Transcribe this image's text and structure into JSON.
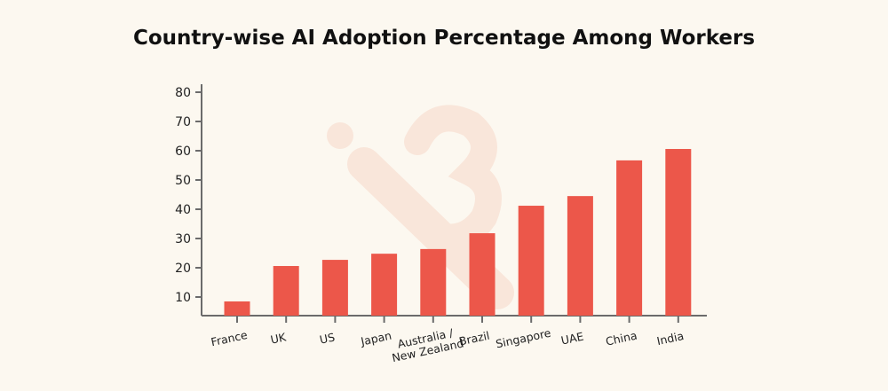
{
  "chart_data": {
    "type": "bar",
    "title": "Country-wise AI Adoption Percentage Among Workers",
    "xlabel": "",
    "ylabel": "",
    "categories": [
      "France",
      "UK",
      "US",
      "Japan",
      "Australia / New Zealand",
      "Brazil",
      "Singapore",
      "UAE",
      "China",
      "India"
    ],
    "category_lines": [
      [
        "France"
      ],
      [
        "UK"
      ],
      [
        "US"
      ],
      [
        "Japan"
      ],
      [
        "Australia /",
        "New Zealand"
      ],
      [
        "Brazil"
      ],
      [
        "Singapore"
      ],
      [
        "UAE"
      ],
      [
        "China"
      ],
      [
        "India"
      ]
    ],
    "values": [
      8.5,
      20.6,
      22.7,
      24.8,
      26.4,
      31.8,
      41.2,
      44.5,
      56.7,
      60.6
    ],
    "yticks": [
      10,
      20,
      30,
      40,
      50,
      60,
      70,
      80
    ],
    "ylim": [
      0,
      80
    ],
    "grid": false,
    "bar_color": "#ec574a",
    "axis_color": "#6b6b6b"
  }
}
